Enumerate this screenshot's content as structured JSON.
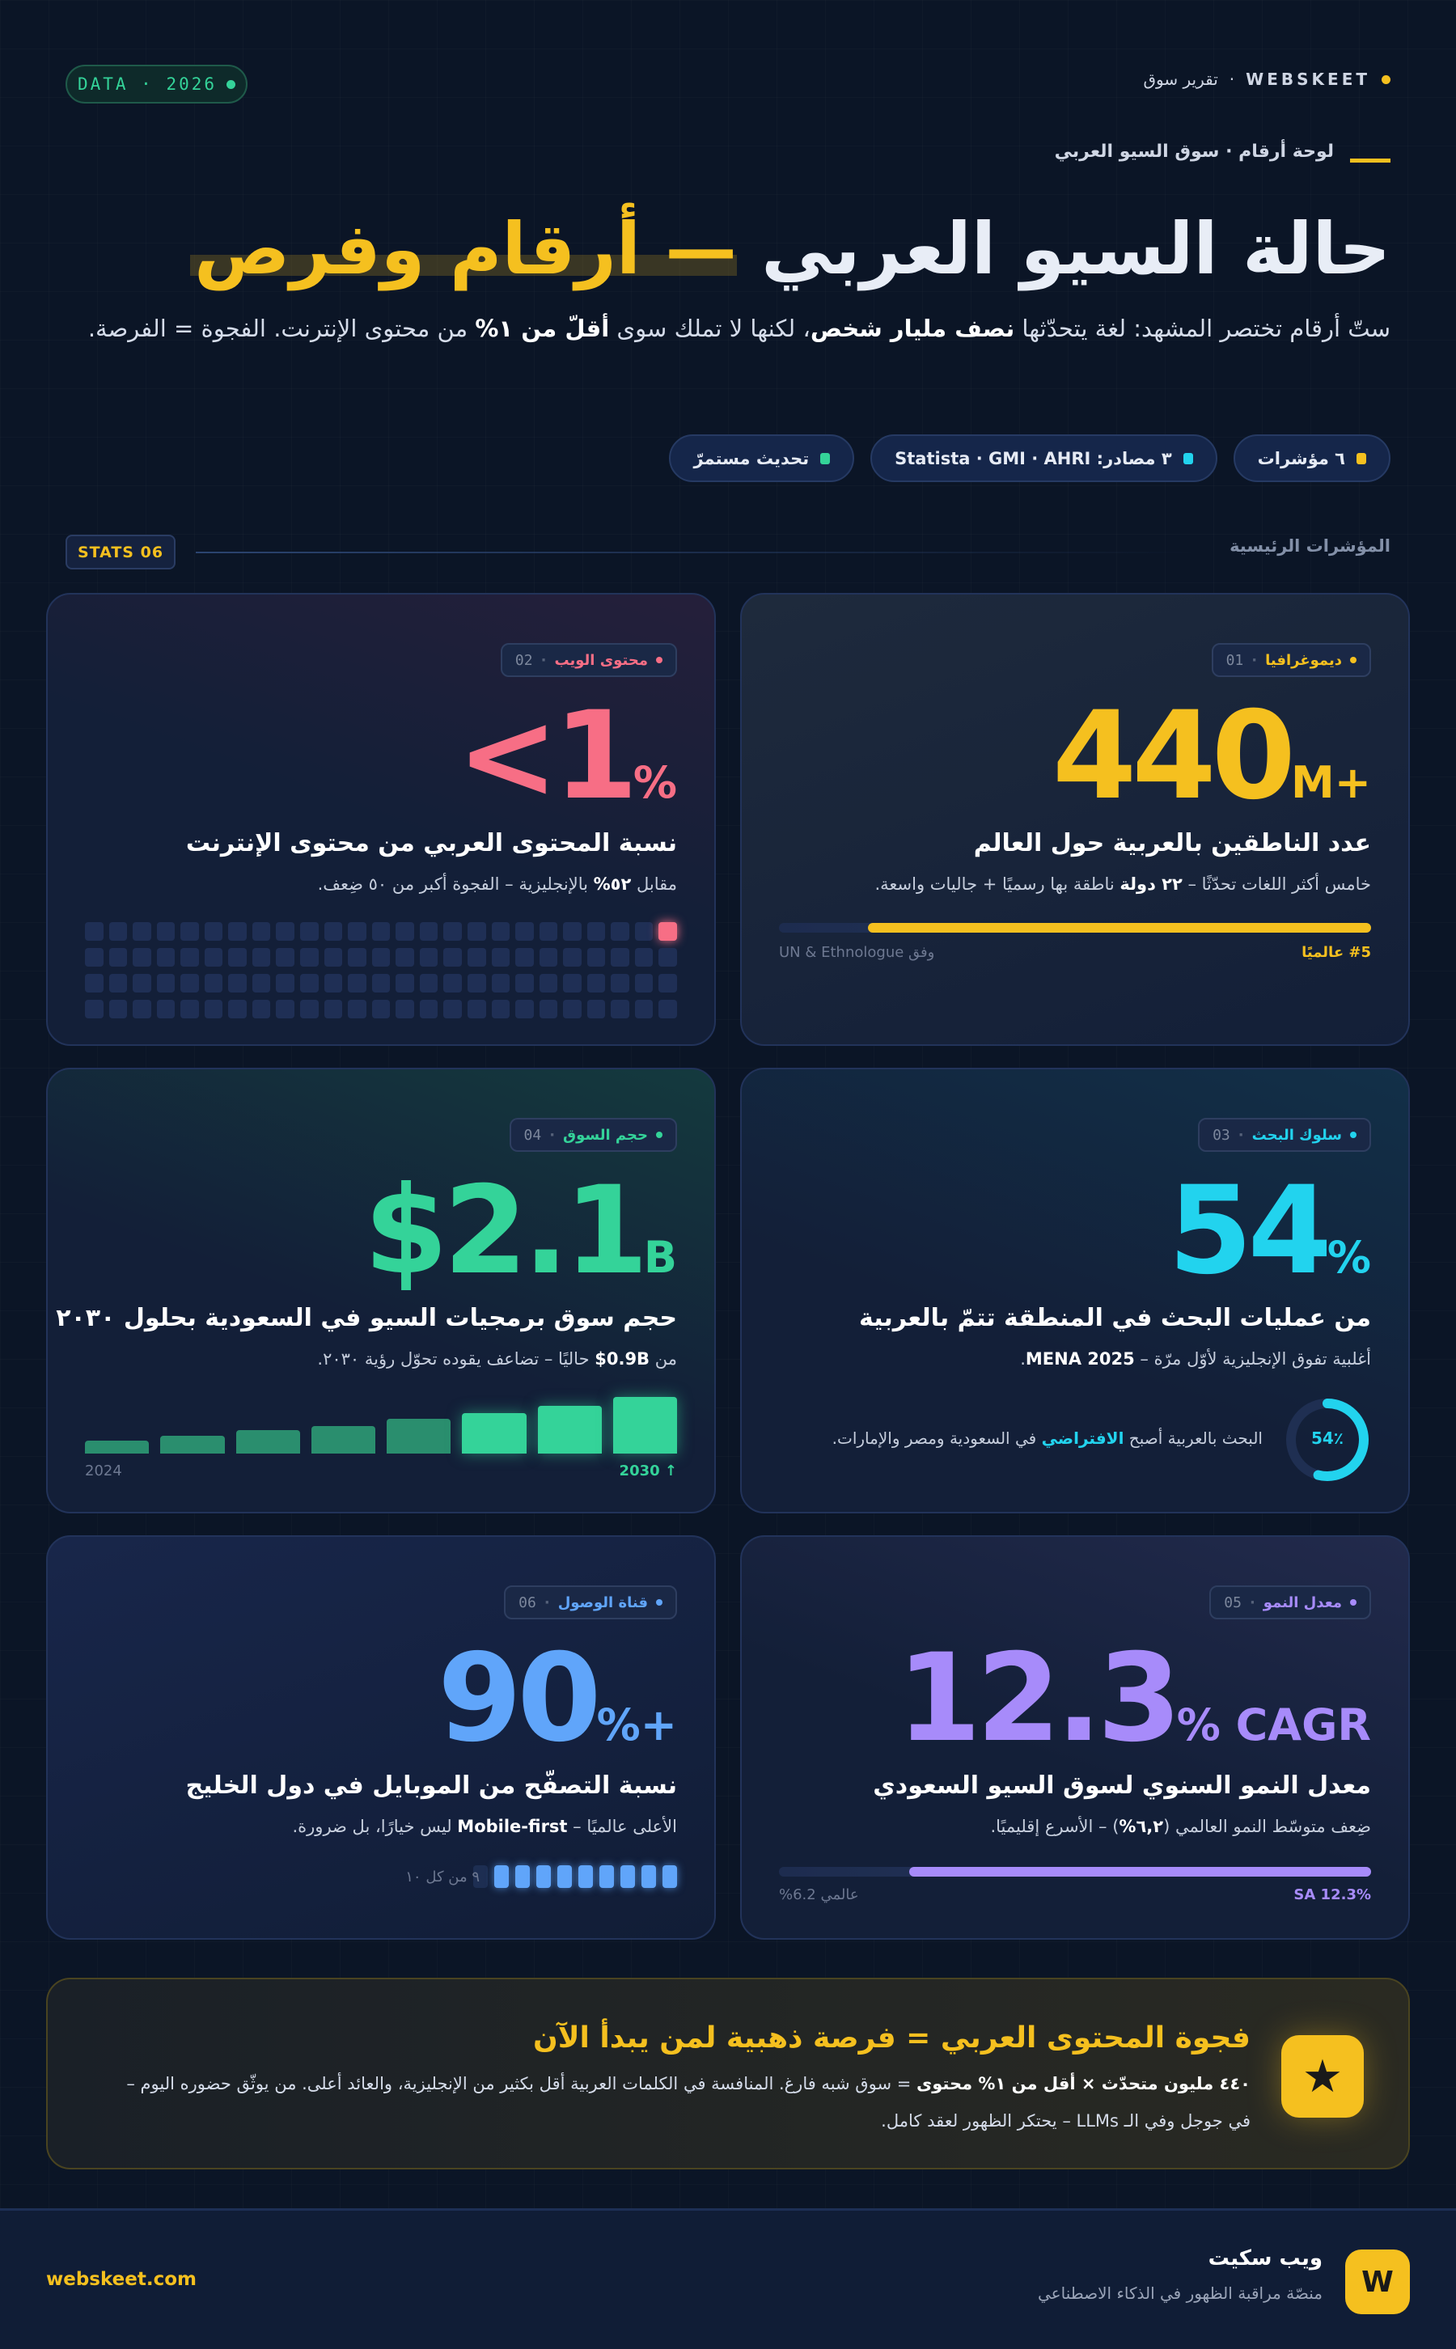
{
  "header": {
    "data_pill": "DATA · 2026",
    "brand_en": "WEBSKEET",
    "brand_sep": "·",
    "brand_ar": "تقرير سوق",
    "kicker": "لوحة أرقام · سوق السيو العربي",
    "title_white": "حالة السيو العربي",
    "title_yellow": "— أرقام وفرص",
    "desc": [
      "ستّ أرقام تختصر المشهد: لغة يتحدّثها ",
      "نصف مليار شخص",
      "، لكنها لا تملك سوى ",
      "أقلّ من ١%",
      " من محتوى الإنترنت. الفجوة = الفرصة."
    ],
    "chips": [
      {
        "label": "٦ مؤشرات",
        "color": "#f5c01f"
      },
      {
        "label": "٣ مصادر: Statista · GMI · AHRI",
        "color": "#22d3ee"
      },
      {
        "label": "تحديث مستمرّ",
        "color": "#34d399"
      }
    ]
  },
  "section": {
    "pill": "STATS 06",
    "label": "المؤشرات الرئيسية"
  },
  "cards": [
    {
      "num": "01",
      "cat": "ديموغرافيا",
      "color": "#f5c01f",
      "value": "440",
      "suffix": "M+",
      "heading": "عدد الناطقين بالعربية حول العالم",
      "sub": [
        "خامس أكثر اللغات تحدّثًا – ",
        "٢٢ دولة",
        " ناطقة بها رسميًا + جاليات واسعة."
      ],
      "bar_fill": 0.85,
      "label_right": "#5 عالميًا",
      "label_left": "وفق UN & Ethnologue"
    },
    {
      "num": "02",
      "cat": "محتوى الويب",
      "color": "#f76e85",
      "value": "<1",
      "suffix": "%",
      "heading": "نسبة المحتوى العربي من محتوى الإنترنت",
      "sub": [
        "مقابل ",
        "٥٢%",
        " بالإنجليزية – الفجوة أكبر من ٥٠ ضِعف."
      ],
      "cells_total": 100,
      "cells_on": 1
    },
    {
      "num": "03",
      "cat": "سلوك البحث",
      "color": "#22d3ee",
      "value": "54",
      "suffix": "%",
      "heading": "من عمليات البحث في المنطقة تتمّ بالعربية",
      "sub": [
        "أغلبية تفوق الإنجليزية لأوّل مرّة – ",
        "MENA 2025",
        "."
      ],
      "donut_value": 54,
      "donut_label": "54٪",
      "note": [
        "البحث بالعربية أصبح ",
        "الافتراضي",
        " في السعودية ومصر والإمارات."
      ]
    },
    {
      "num": "04",
      "cat": "حجم السوق",
      "color": "#34d399",
      "value": "$2.1",
      "suffix": "B",
      "heading": "حجم سوق برمجيات السيو في السعودية بحلول ٢٠٣٠",
      "sub": [
        "من ",
        "0.9B$",
        " حاليًا – تضاعف يقوده تحوّل رؤية ٢٠٣٠."
      ],
      "bars": [
        0.23,
        0.32,
        0.41,
        0.48,
        0.61,
        0.72,
        0.85,
        1
      ],
      "label_start": "2024",
      "label_end": "2030 ↑"
    },
    {
      "num": "05",
      "cat": "معدل النمو",
      "color": "#a78bfa",
      "value": "12.3",
      "suffix": "% CAGR",
      "heading": "معدل النمو السنوي لسوق السيو السعودي",
      "sub": [
        "ضِعف متوسّط النمو العالمي (",
        "٦,٢%",
        ") – الأسرع إقليميًا."
      ],
      "bar_fill": 0.78,
      "label_right": "SA 12.3%",
      "label_left": "عالمي 6.2%"
    },
    {
      "num": "06",
      "cat": "قناة الوصول",
      "color": "#60a5fa",
      "value": "90",
      "suffix": "%+",
      "heading": "نسبة التصفّح من الموبايل في دول الخليج",
      "sub": [
        "الأعلى عالميًا – ",
        "Mobile-first",
        " ليس خيارًا، بل ضرورة."
      ],
      "segments_total": 10,
      "segments_on": 9,
      "seg_label": "٩ من كل ١٠"
    }
  ],
  "banner": {
    "icon": "star-icon",
    "title": "فجوة المحتوى العربي = فرصة ذهبية لمن يبدأ الآن",
    "text": [
      "٤٤٠ مليون متحدّث × أقل من ١% محتوى",
      " = سوق شبه فارغ. المنافسة في الكلمات العربية أقل بكثير من الإنجليزية، والعائد أعلى. من يوثّق حضوره اليوم – في جوجل وفي الـ LLMs – يحتكر الظهور لعقد كامل."
    ]
  },
  "footer": {
    "logo": "W",
    "name": "ويب سكيت",
    "tagline": "منصّة مراقبة الظهور في الذكاء الاصطناعي",
    "url": "webskeet.com"
  }
}
